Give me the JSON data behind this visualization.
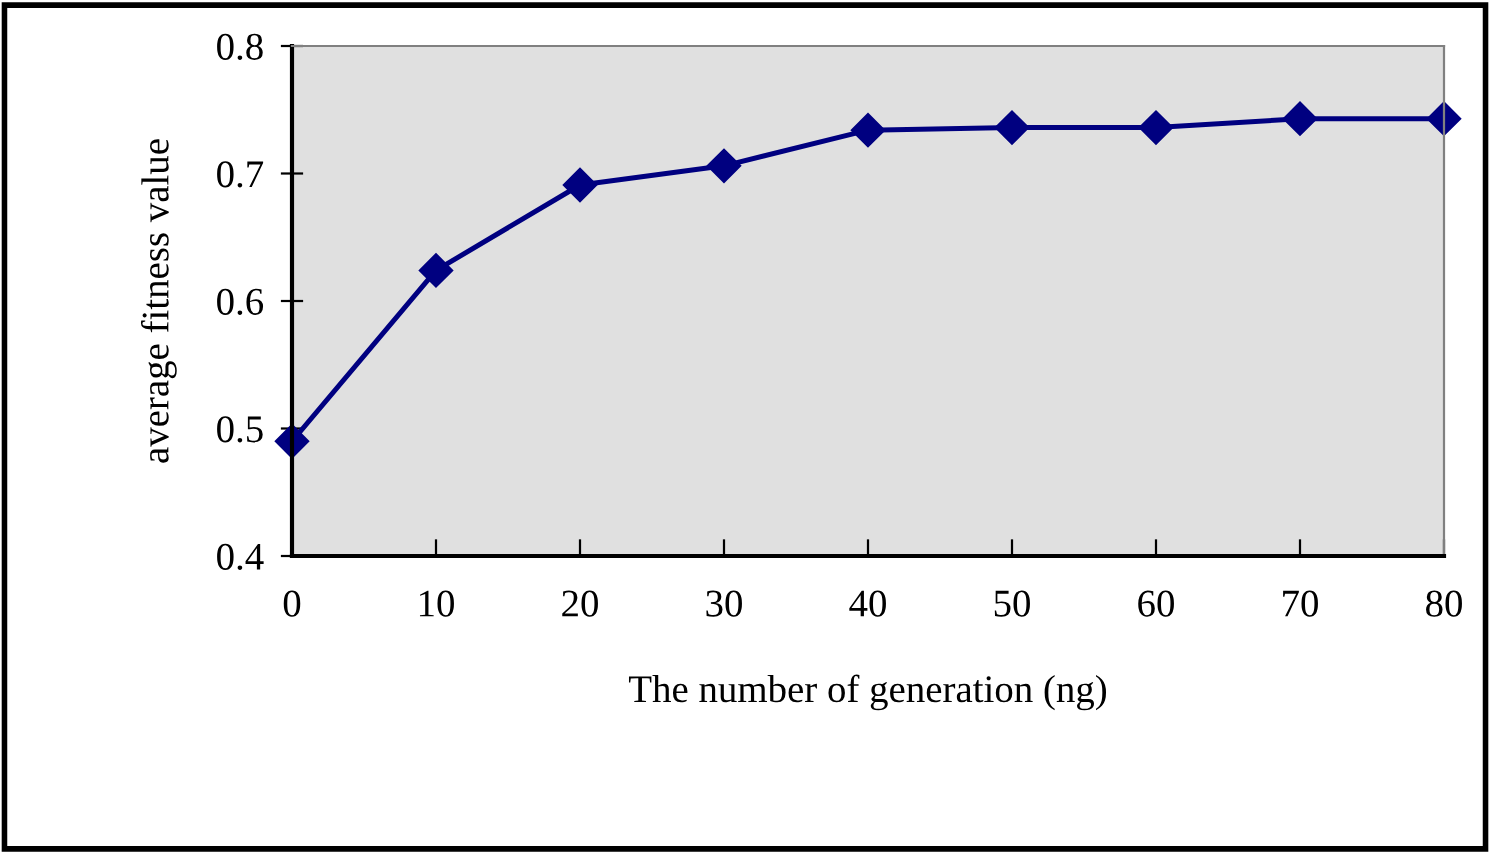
{
  "chart_data": {
    "type": "line",
    "xlabel": "The number of generation (ng)",
    "ylabel": "average fitness value",
    "x": [
      0,
      10,
      20,
      30,
      40,
      50,
      60,
      70,
      80
    ],
    "series": [
      {
        "color": "#000080",
        "values": [
          0.49,
          0.624,
          0.691,
          0.706,
          0.734,
          0.736,
          0.736,
          0.743,
          0.743
        ]
      }
    ],
    "xlim": [
      0,
      80
    ],
    "xticks": [
      0,
      10,
      20,
      30,
      40,
      50,
      60,
      70,
      80
    ],
    "ylim": [
      0.4,
      0.8
    ],
    "yticks": [
      0.4,
      0.5,
      0.6,
      0.7,
      0.8
    ],
    "marker": "diamond",
    "line_style": "solid",
    "grid": false,
    "legend": false
  }
}
